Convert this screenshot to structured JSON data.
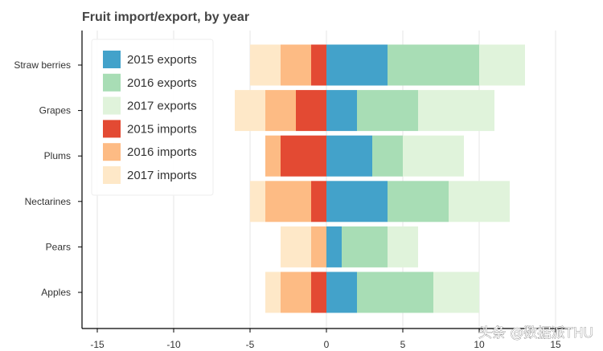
{
  "chart_data": {
    "type": "bar",
    "orientation": "horizontal",
    "stacked": true,
    "title": "Fruit import/export, by year",
    "xlabel": "",
    "ylabel": "",
    "categories": [
      "Straw berries",
      "Grapes",
      "Plums",
      "Nectarines",
      "Pears",
      "Apples"
    ],
    "xlim": [
      -16,
      16
    ],
    "xticks": [
      -15,
      -10,
      -5,
      0,
      5,
      10,
      15
    ],
    "xtick_labels": [
      "-15",
      "-10",
      "-5",
      "0",
      "5",
      "10",
      "15"
    ],
    "grid": "vertical",
    "legend_position": "top-left",
    "series": [
      {
        "name": "2015 exports",
        "color": "#43a2ca",
        "values": [
          4,
          2,
          3,
          4,
          1,
          2
        ]
      },
      {
        "name": "2016 exports",
        "color": "#a8ddb5",
        "values": [
          6,
          4,
          2,
          4,
          3,
          5
        ]
      },
      {
        "name": "2017 exports",
        "color": "#e0f3db",
        "values": [
          3,
          5,
          4,
          4,
          2,
          3
        ]
      },
      {
        "name": "2015 imports",
        "color": "#e34a33",
        "values": [
          -1,
          -2,
          -3,
          -1,
          0,
          -1
        ]
      },
      {
        "name": "2016 imports",
        "color": "#fdbb84",
        "values": [
          -2,
          -2,
          -1,
          -3,
          -1,
          -2
        ]
      },
      {
        "name": "2017 imports",
        "color": "#fee8c8",
        "values": [
          -2,
          -2,
          0,
          -1,
          -2,
          -1
        ]
      }
    ]
  },
  "watermark": "头条 @数据派THU"
}
